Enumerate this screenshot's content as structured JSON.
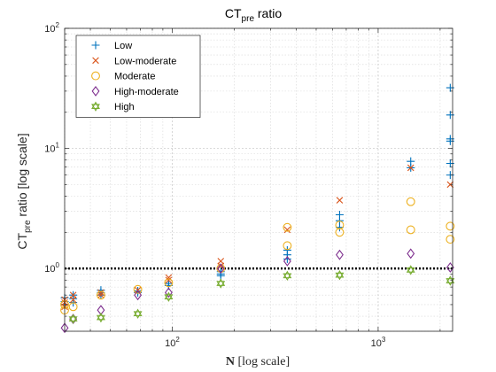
{
  "chart_data": {
    "type": "scatter",
    "title": {
      "main": "CT",
      "sub": "pre",
      "rest": " ratio"
    },
    "xlabel": {
      "bold": "N",
      "rest": " [log scale]"
    },
    "ylabel": {
      "main": "CT",
      "sub": "pre",
      "rest": " ratio [log scale]"
    },
    "x_scale": "log",
    "y_scale": "log",
    "xlim": [
      30,
      2300
    ],
    "ylim": [
      0.3,
      100
    ],
    "x_ticks": [
      {
        "value": 100,
        "base": "10",
        "exp": "2"
      },
      {
        "value": 1000,
        "base": "10",
        "exp": "3"
      }
    ],
    "y_ticks": [
      {
        "value": 1,
        "base": "10",
        "exp": "0"
      },
      {
        "value": 10,
        "base": "10",
        "exp": "1"
      },
      {
        "value": 100,
        "base": "10",
        "exp": "2"
      }
    ],
    "grid": true,
    "legend_position": "top-left",
    "reference_line": {
      "y": 1,
      "style": "dotted",
      "color": "#000000"
    },
    "series": [
      {
        "name": "Low",
        "marker": "plus",
        "color": "#0072BD",
        "points": [
          [
            30,
            0.5
          ],
          [
            30,
            0.53
          ],
          [
            30,
            0.57
          ],
          [
            33,
            0.52
          ],
          [
            33,
            0.56
          ],
          [
            33,
            0.6
          ],
          [
            45,
            0.6
          ],
          [
            45,
            0.63
          ],
          [
            45,
            0.66
          ],
          [
            68,
            0.63
          ],
          [
            68,
            0.65
          ],
          [
            96,
            0.72
          ],
          [
            96,
            0.75
          ],
          [
            172,
            0.87
          ],
          [
            172,
            0.9
          ],
          [
            172,
            0.94
          ],
          [
            362,
            1.2
          ],
          [
            362,
            1.3
          ],
          [
            362,
            1.42
          ],
          [
            650,
            2.2
          ],
          [
            650,
            2.5
          ],
          [
            650,
            2.8
          ],
          [
            1440,
            6.9
          ],
          [
            1440,
            7.8
          ],
          [
            2240,
            6.0
          ],
          [
            2240,
            7.5
          ],
          [
            2240,
            11.5
          ],
          [
            2240,
            12
          ],
          [
            2240,
            19
          ],
          [
            2240,
            32
          ]
        ]
      },
      {
        "name": "Low-moderate",
        "marker": "x",
        "color": "#D95319",
        "points": [
          [
            30,
            0.48
          ],
          [
            30,
            0.52
          ],
          [
            30,
            0.55
          ],
          [
            33,
            0.55
          ],
          [
            33,
            0.6
          ],
          [
            45,
            0.6
          ],
          [
            45,
            0.63
          ],
          [
            68,
            0.66
          ],
          [
            96,
            0.8
          ],
          [
            96,
            0.84
          ],
          [
            172,
            1.05
          ],
          [
            172,
            1.15
          ],
          [
            362,
            2.1
          ],
          [
            650,
            3.7
          ],
          [
            1440,
            6.9
          ],
          [
            2240,
            5.0
          ]
        ]
      },
      {
        "name": "Moderate",
        "marker": "circle",
        "color": "#EDB120",
        "points": [
          [
            30,
            0.45
          ],
          [
            30,
            0.5
          ],
          [
            33,
            0.48
          ],
          [
            45,
            0.6
          ],
          [
            68,
            0.67
          ],
          [
            96,
            0.76
          ],
          [
            172,
            1.0
          ],
          [
            362,
            1.55
          ],
          [
            362,
            2.2
          ],
          [
            650,
            2.0
          ],
          [
            650,
            2.3
          ],
          [
            1440,
            2.1
          ],
          [
            1440,
            3.6
          ],
          [
            2240,
            1.75
          ],
          [
            2240,
            2.25
          ]
        ]
      },
      {
        "name": "High-moderate",
        "marker": "diamond",
        "color": "#7E2F8E",
        "points": [
          [
            30,
            0.32
          ],
          [
            33,
            0.38
          ],
          [
            45,
            0.45
          ],
          [
            68,
            0.6
          ],
          [
            96,
            0.63
          ],
          [
            172,
            1.0
          ],
          [
            362,
            1.15
          ],
          [
            650,
            1.3
          ],
          [
            1440,
            1.33
          ],
          [
            2240,
            1.02
          ]
        ]
      },
      {
        "name": "High",
        "marker": "hexagram",
        "color": "#77AC30",
        "points": [
          [
            33,
            0.38
          ],
          [
            45,
            0.39
          ],
          [
            68,
            0.42
          ],
          [
            96,
            0.58
          ],
          [
            172,
            0.75
          ],
          [
            362,
            0.87
          ],
          [
            650,
            0.88
          ],
          [
            1440,
            0.97
          ],
          [
            2240,
            0.79
          ]
        ]
      }
    ]
  }
}
